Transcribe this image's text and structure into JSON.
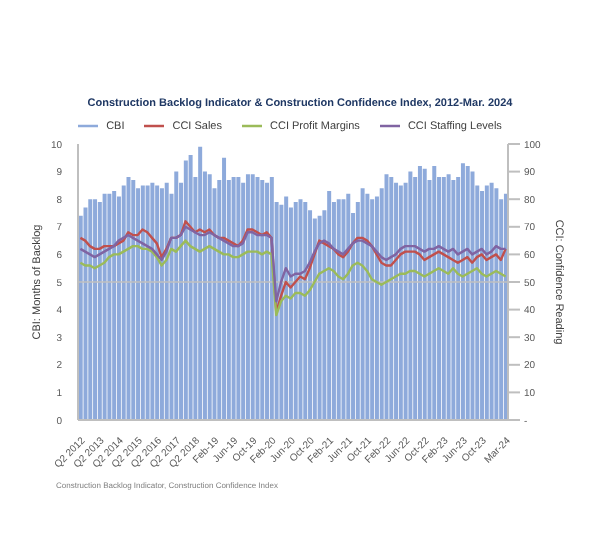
{
  "chart_data": {
    "type": "bar",
    "title": "Construction Backlog Indicator & Construction Confidence Index, 2012-Mar. 2024",
    "ylabel": "CBI: Months of Backlog",
    "y2label": "CCI: Confidence Reading",
    "categories": [
      "Q2 2012",
      null,
      null,
      null,
      "Q2 2013",
      null,
      null,
      null,
      "Q2 2014",
      null,
      null,
      null,
      "Q2 2015",
      null,
      null,
      null,
      "Q2 2016",
      null,
      null,
      null,
      "Q2 2017",
      null,
      null,
      null,
      "Q2 2018",
      null,
      null,
      null,
      "Feb-19",
      null,
      null,
      null,
      "Jun-19",
      null,
      null,
      null,
      "Oct-19",
      null,
      null,
      null,
      "Feb-20",
      null,
      null,
      null,
      "Jun-20",
      null,
      null,
      null,
      "Oct-20",
      null,
      null,
      null,
      "Feb-21",
      null,
      null,
      null,
      "Jun-21",
      null,
      null,
      null,
      "Oct-21",
      null,
      null,
      null,
      "Feb-22",
      null,
      null,
      null,
      "Jun-22",
      null,
      null,
      null,
      "Oct-22",
      null,
      null,
      null,
      "Feb-23",
      null,
      null,
      null,
      "Jun-23",
      null,
      null,
      null,
      "Oct-23",
      null,
      null,
      null,
      null,
      "Mar-24"
    ],
    "series": [
      {
        "name": "CBI",
        "color": "#8eaadb",
        "values": [
          7.4,
          7.7,
          8.0,
          8.0,
          7.9,
          8.2,
          8.2,
          8.3,
          8.1,
          8.5,
          8.8,
          8.7,
          8.4,
          8.5,
          8.5,
          8.6,
          8.5,
          8.4,
          8.6,
          8.2,
          9.0,
          8.6,
          9.4,
          9.6,
          8.8,
          9.9,
          9.0,
          8.9,
          8.4,
          8.7,
          9.5,
          8.7,
          8.8,
          8.8,
          8.6,
          8.9,
          8.9,
          8.8,
          8.7,
          8.6,
          8.8,
          7.9,
          7.8,
          8.1,
          7.7,
          7.9,
          8.0,
          7.9,
          7.6,
          7.3,
          7.4,
          7.6,
          8.3,
          7.9,
          8.0,
          8.0,
          8.2,
          7.5,
          7.9,
          8.4,
          8.2,
          8.0,
          8.1,
          8.4,
          8.9,
          8.8,
          8.6,
          8.5,
          8.6,
          9.0,
          8.8,
          9.2,
          9.1,
          8.7,
          9.2,
          8.8,
          8.8,
          8.9,
          8.7,
          8.8,
          9.3,
          9.2,
          9.0,
          8.5,
          8.3,
          8.5,
          8.6,
          8.4,
          8.0,
          8.2
        ]
      },
      {
        "name": "CCI Sales",
        "type": "line",
        "axis": "y2",
        "color": "#c0504d",
        "values": [
          66,
          65,
          63,
          62,
          62,
          63,
          63,
          63,
          64,
          65,
          68,
          67,
          67,
          69,
          68,
          66,
          64,
          59,
          62,
          66,
          66,
          67,
          72,
          70,
          68,
          69,
          68,
          69,
          67,
          66,
          66,
          65,
          64,
          63,
          65,
          69,
          69,
          68,
          67,
          68,
          66,
          39,
          45,
          50,
          48,
          50,
          52,
          51,
          55,
          60,
          65,
          64,
          63,
          62,
          60,
          59,
          61,
          64,
          66,
          66,
          65,
          63,
          60,
          57,
          56,
          56,
          58,
          60,
          61,
          61,
          61,
          60,
          58,
          59,
          60,
          61,
          60,
          59,
          58,
          57,
          58,
          59,
          57,
          59,
          60,
          58,
          59,
          60,
          58,
          62
        ]
      },
      {
        "name": "CCI Profit Margins",
        "type": "line",
        "axis": "y2",
        "color": "#9bbb59",
        "values": [
          57,
          56,
          56,
          55,
          56,
          57,
          59,
          60,
          60,
          61,
          62,
          63,
          63,
          62,
          62,
          61,
          59,
          56,
          58,
          62,
          61,
          63,
          65,
          63,
          62,
          61,
          62,
          63,
          62,
          61,
          60,
          60,
          59,
          59,
          60,
          61,
          61,
          61,
          60,
          61,
          60,
          38,
          43,
          45,
          44,
          46,
          46,
          45,
          47,
          50,
          53,
          54,
          55,
          54,
          52,
          51,
          53,
          56,
          57,
          56,
          54,
          51,
          50,
          49,
          50,
          51,
          52,
          53,
          53,
          54,
          54,
          53,
          52,
          53,
          54,
          55,
          54,
          53,
          55,
          53,
          52,
          53,
          54,
          55,
          53,
          52,
          53,
          54,
          53,
          52
        ]
      },
      {
        "name": "CCI Staffing Levels",
        "type": "line",
        "axis": "y2",
        "color": "#8064a2",
        "values": [
          62,
          61,
          60,
          59,
          60,
          61,
          62,
          63,
          65,
          66,
          67,
          66,
          65,
          64,
          63,
          62,
          60,
          58,
          61,
          66,
          66,
          67,
          70,
          69,
          68,
          67,
          67,
          68,
          67,
          66,
          65,
          64,
          63,
          63,
          64,
          68,
          68,
          67,
          67,
          67,
          66,
          43,
          50,
          55,
          52,
          53,
          53,
          54,
          57,
          61,
          64,
          65,
          64,
          62,
          61,
          60,
          62,
          64,
          65,
          65,
          64,
          63,
          61,
          59,
          58,
          59,
          60,
          62,
          63,
          63,
          63,
          62,
          61,
          62,
          62,
          63,
          62,
          61,
          62,
          60,
          61,
          62,
          60,
          61,
          62,
          60,
          61,
          63,
          62,
          62
        ]
      }
    ],
    "ylim": [
      0,
      10
    ],
    "yticks": [
      0,
      1,
      2,
      3,
      4,
      5,
      6,
      7,
      8,
      9,
      10
    ],
    "y2lim": [
      0,
      100
    ],
    "y2ticks": [
      {
        "value": 0,
        "label": "-"
      },
      10,
      20,
      30,
      40,
      50,
      60,
      70,
      80,
      90,
      100
    ],
    "ref_lines": [
      {
        "axis": "y",
        "value": 5,
        "color": "#bfbfbf"
      }
    ],
    "legend": "top",
    "marker": "none",
    "line_style": "solid",
    "annotations": [
      "Construction Backlog Indicator, Construction Confidence Index"
    ]
  }
}
